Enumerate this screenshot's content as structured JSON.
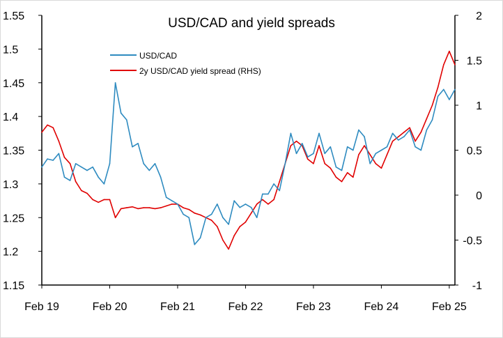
{
  "chart_data": {
    "type": "line",
    "title": "USD/CAD and yield spreads",
    "x_tick_labels": [
      "Feb 19",
      "Feb 20",
      "Feb 21",
      "Feb 22",
      "Feb 23",
      "Feb 24",
      "Feb 25"
    ],
    "x_tick_dates": [
      "2019-02",
      "2020-02",
      "2021-02",
      "2022-02",
      "2023-02",
      "2024-02",
      "2025-02"
    ],
    "xlim": [
      "2019-02",
      "2025-03"
    ],
    "y_left": {
      "ylim": [
        1.15,
        1.55
      ],
      "ticks": [
        1.15,
        1.2,
        1.25,
        1.3,
        1.35,
        1.4,
        1.45,
        1.5,
        1.55
      ],
      "tick_labels": [
        "1.15",
        "1.2",
        "1.25",
        "1.3",
        "1.35",
        "1.4",
        "1.45",
        "1.5",
        "1.55"
      ]
    },
    "y_right": {
      "ylim": [
        -1,
        2
      ],
      "ticks": [
        -1,
        -0.5,
        0,
        0.5,
        1,
        1.5,
        2
      ],
      "tick_labels": [
        "-1",
        "-0.5",
        "0",
        "0.5",
        "1",
        "1.5",
        "2"
      ]
    },
    "grid": false,
    "legend_position": "top-left inside plot",
    "series": [
      {
        "name": "USD/CAD",
        "axis": "left",
        "color": "#2e8bc0",
        "points": [
          [
            "2019-02",
            1.325
          ],
          [
            "2019-03",
            1.337
          ],
          [
            "2019-04",
            1.335
          ],
          [
            "2019-05",
            1.345
          ],
          [
            "2019-06",
            1.31
          ],
          [
            "2019-07",
            1.305
          ],
          [
            "2019-08",
            1.33
          ],
          [
            "2019-09",
            1.325
          ],
          [
            "2019-10",
            1.32
          ],
          [
            "2019-11",
            1.325
          ],
          [
            "2019-12",
            1.31
          ],
          [
            "2020-01",
            1.3
          ],
          [
            "2020-02",
            1.33
          ],
          [
            "2020-03",
            1.45
          ],
          [
            "2020-04",
            1.405
          ],
          [
            "2020-05",
            1.395
          ],
          [
            "2020-06",
            1.355
          ],
          [
            "2020-07",
            1.36
          ],
          [
            "2020-08",
            1.33
          ],
          [
            "2020-09",
            1.32
          ],
          [
            "2020-10",
            1.33
          ],
          [
            "2020-11",
            1.31
          ],
          [
            "2020-12",
            1.28
          ],
          [
            "2021-01",
            1.275
          ],
          [
            "2021-02",
            1.27
          ],
          [
            "2021-03",
            1.255
          ],
          [
            "2021-04",
            1.25
          ],
          [
            "2021-05",
            1.21
          ],
          [
            "2021-06",
            1.22
          ],
          [
            "2021-07",
            1.25
          ],
          [
            "2021-08",
            1.255
          ],
          [
            "2021-09",
            1.27
          ],
          [
            "2021-10",
            1.25
          ],
          [
            "2021-11",
            1.24
          ],
          [
            "2021-12",
            1.275
          ],
          [
            "2022-01",
            1.265
          ],
          [
            "2022-02",
            1.27
          ],
          [
            "2022-03",
            1.265
          ],
          [
            "2022-04",
            1.25
          ],
          [
            "2022-05",
            1.285
          ],
          [
            "2022-06",
            1.285
          ],
          [
            "2022-07",
            1.3
          ],
          [
            "2022-08",
            1.29
          ],
          [
            "2022-09",
            1.33
          ],
          [
            "2022-10",
            1.375
          ],
          [
            "2022-11",
            1.345
          ],
          [
            "2022-12",
            1.36
          ],
          [
            "2023-01",
            1.34
          ],
          [
            "2023-02",
            1.345
          ],
          [
            "2023-03",
            1.375
          ],
          [
            "2023-04",
            1.345
          ],
          [
            "2023-05",
            1.355
          ],
          [
            "2023-06",
            1.325
          ],
          [
            "2023-07",
            1.32
          ],
          [
            "2023-08",
            1.355
          ],
          [
            "2023-09",
            1.35
          ],
          [
            "2023-10",
            1.38
          ],
          [
            "2023-11",
            1.37
          ],
          [
            "2023-12",
            1.33
          ],
          [
            "2024-01",
            1.345
          ],
          [
            "2024-02",
            1.35
          ],
          [
            "2024-03",
            1.355
          ],
          [
            "2024-04",
            1.375
          ],
          [
            "2024-05",
            1.365
          ],
          [
            "2024-06",
            1.37
          ],
          [
            "2024-07",
            1.38
          ],
          [
            "2024-08",
            1.355
          ],
          [
            "2024-09",
            1.35
          ],
          [
            "2024-10",
            1.38
          ],
          [
            "2024-11",
            1.395
          ],
          [
            "2024-12",
            1.43
          ],
          [
            "2025-01",
            1.44
          ],
          [
            "2025-02",
            1.425
          ],
          [
            "2025-03",
            1.44
          ]
        ]
      },
      {
        "name": "2y USD/CAD yield spread (RHS)",
        "axis": "right",
        "color": "#e00000",
        "points": [
          [
            "2019-02",
            0.7
          ],
          [
            "2019-03",
            0.78
          ],
          [
            "2019-04",
            0.75
          ],
          [
            "2019-05",
            0.6
          ],
          [
            "2019-06",
            0.42
          ],
          [
            "2019-07",
            0.35
          ],
          [
            "2019-08",
            0.15
          ],
          [
            "2019-09",
            0.05
          ],
          [
            "2019-10",
            0.02
          ],
          [
            "2019-11",
            -0.05
          ],
          [
            "2019-12",
            -0.08
          ],
          [
            "2020-01",
            -0.05
          ],
          [
            "2020-02",
            -0.05
          ],
          [
            "2020-03",
            -0.25
          ],
          [
            "2020-04",
            -0.15
          ],
          [
            "2020-05",
            -0.14
          ],
          [
            "2020-06",
            -0.13
          ],
          [
            "2020-07",
            -0.15
          ],
          [
            "2020-08",
            -0.14
          ],
          [
            "2020-09",
            -0.14
          ],
          [
            "2020-10",
            -0.15
          ],
          [
            "2020-11",
            -0.14
          ],
          [
            "2020-12",
            -0.12
          ],
          [
            "2021-01",
            -0.1
          ],
          [
            "2021-02",
            -0.1
          ],
          [
            "2021-03",
            -0.14
          ],
          [
            "2021-04",
            -0.16
          ],
          [
            "2021-05",
            -0.2
          ],
          [
            "2021-06",
            -0.22
          ],
          [
            "2021-07",
            -0.25
          ],
          [
            "2021-08",
            -0.28
          ],
          [
            "2021-09",
            -0.35
          ],
          [
            "2021-10",
            -0.5
          ],
          [
            "2021-11",
            -0.6
          ],
          [
            "2021-12",
            -0.45
          ],
          [
            "2022-01",
            -0.35
          ],
          [
            "2022-02",
            -0.3
          ],
          [
            "2022-03",
            -0.2
          ],
          [
            "2022-04",
            -0.1
          ],
          [
            "2022-05",
            -0.05
          ],
          [
            "2022-06",
            -0.1
          ],
          [
            "2022-07",
            -0.05
          ],
          [
            "2022-08",
            0.15
          ],
          [
            "2022-09",
            0.35
          ],
          [
            "2022-10",
            0.55
          ],
          [
            "2022-11",
            0.6
          ],
          [
            "2022-12",
            0.55
          ],
          [
            "2023-01",
            0.4
          ],
          [
            "2023-02",
            0.35
          ],
          [
            "2023-03",
            0.55
          ],
          [
            "2023-04",
            0.35
          ],
          [
            "2023-05",
            0.3
          ],
          [
            "2023-06",
            0.2
          ],
          [
            "2023-07",
            0.15
          ],
          [
            "2023-08",
            0.25
          ],
          [
            "2023-09",
            0.2
          ],
          [
            "2023-10",
            0.45
          ],
          [
            "2023-11",
            0.55
          ],
          [
            "2023-12",
            0.45
          ],
          [
            "2024-01",
            0.35
          ],
          [
            "2024-02",
            0.3
          ],
          [
            "2024-03",
            0.45
          ],
          [
            "2024-04",
            0.6
          ],
          [
            "2024-05",
            0.65
          ],
          [
            "2024-06",
            0.7
          ],
          [
            "2024-07",
            0.75
          ],
          [
            "2024-08",
            0.6
          ],
          [
            "2024-09",
            0.7
          ],
          [
            "2024-10",
            0.85
          ],
          [
            "2024-11",
            1.0
          ],
          [
            "2024-12",
            1.2
          ],
          [
            "2025-01",
            1.45
          ],
          [
            "2025-02",
            1.6
          ],
          [
            "2025-03",
            1.45
          ]
        ]
      }
    ]
  }
}
